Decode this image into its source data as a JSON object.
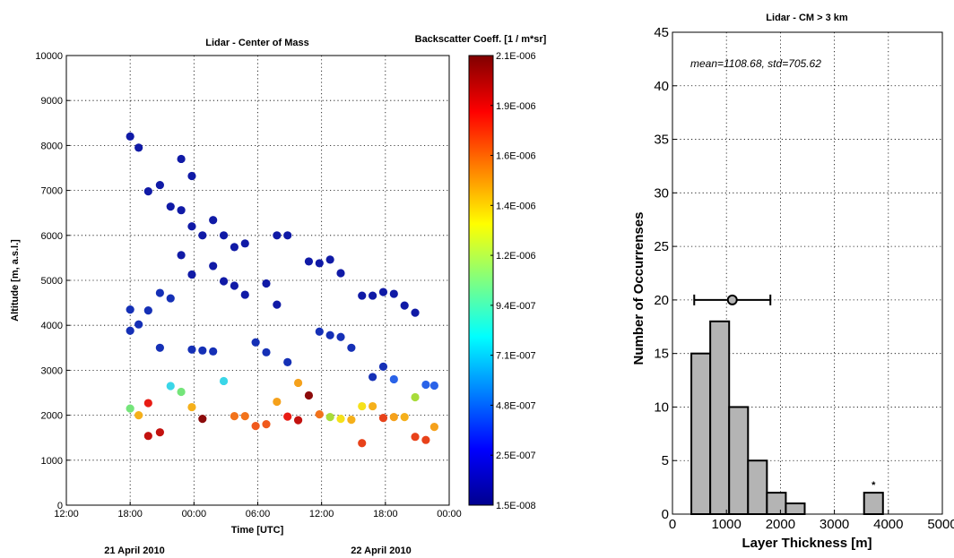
{
  "chart_data": [
    {
      "type": "scatter",
      "title": "Lidar - Center of Mass",
      "xlabel": "Time [UTC]",
      "ylabel": "Altitude [m, a.s.l.]",
      "x_unit": "hours since 21 April 2010 12:00 UTC",
      "x_tick_labels": [
        "12:00",
        "18:00",
        "00:00",
        "06:00",
        "12:00",
        "18:00",
        "00:00"
      ],
      "x_tick_values": [
        0,
        6,
        12,
        18,
        24,
        30,
        36
      ],
      "y_tick_labels": [
        "0",
        "1000",
        "2000",
        "3000",
        "4000",
        "5000",
        "6000",
        "7000",
        "8000",
        "9000",
        "10000"
      ],
      "xlim": [
        0,
        36
      ],
      "ylim": [
        0,
        10000
      ],
      "grid": true,
      "date_labels": [
        "21 April 2010",
        "22 April 2010"
      ],
      "colorbar": {
        "title": "Backscatter Coeff. [1 / m*sr]",
        "tick_labels": [
          "2.1E-006",
          "1.9E-006",
          "1.6E-006",
          "1.4E-006",
          "1.2E-006",
          "9.4E-007",
          "7.1E-007",
          "4.8E-007",
          "2.5E-007",
          "1.5E-008"
        ],
        "colors": [
          "#00008f",
          "#0000ff",
          "#0080ff",
          "#00ffff",
          "#80ff80",
          "#ffff00",
          "#ff8000",
          "#ff0000",
          "#800000"
        ]
      },
      "points": [
        {
          "x": 6.0,
          "y": 8200,
          "c": "#101aa6"
        },
        {
          "x": 6.8,
          "y": 7950,
          "c": "#101aa6"
        },
        {
          "x": 6.0,
          "y": 4350,
          "c": "#1530b6"
        },
        {
          "x": 6.0,
          "y": 3880,
          "c": "#1530b6"
        },
        {
          "x": 6.0,
          "y": 2150,
          "c": "#74e57a"
        },
        {
          "x": 6.8,
          "y": 4020,
          "c": "#1530b6"
        },
        {
          "x": 6.8,
          "y": 2000,
          "c": "#f5b01b"
        },
        {
          "x": 7.7,
          "y": 6980,
          "c": "#101aa6"
        },
        {
          "x": 7.7,
          "y": 4330,
          "c": "#1530b6"
        },
        {
          "x": 7.7,
          "y": 2270,
          "c": "#e81c14"
        },
        {
          "x": 7.7,
          "y": 1540,
          "c": "#c3120f"
        },
        {
          "x": 8.8,
          "y": 7120,
          "c": "#101aa6"
        },
        {
          "x": 8.8,
          "y": 4720,
          "c": "#1530b6"
        },
        {
          "x": 8.8,
          "y": 3500,
          "c": "#1530b6"
        },
        {
          "x": 8.8,
          "y": 1620,
          "c": "#c3120f"
        },
        {
          "x": 9.8,
          "y": 6640,
          "c": "#101aa6"
        },
        {
          "x": 9.8,
          "y": 4600,
          "c": "#1530b6"
        },
        {
          "x": 9.8,
          "y": 2650,
          "c": "#3ad6e8"
        },
        {
          "x": 10.8,
          "y": 7700,
          "c": "#101aa6"
        },
        {
          "x": 10.8,
          "y": 6560,
          "c": "#101aa6"
        },
        {
          "x": 10.8,
          "y": 5560,
          "c": "#101aa6"
        },
        {
          "x": 10.8,
          "y": 2520,
          "c": "#74e57a"
        },
        {
          "x": 11.8,
          "y": 7320,
          "c": "#101aa6"
        },
        {
          "x": 11.8,
          "y": 6200,
          "c": "#101aa6"
        },
        {
          "x": 11.8,
          "y": 5130,
          "c": "#101aa6"
        },
        {
          "x": 11.8,
          "y": 3460,
          "c": "#1530b6"
        },
        {
          "x": 11.8,
          "y": 2180,
          "c": "#f5b01b"
        },
        {
          "x": 12.8,
          "y": 6000,
          "c": "#101aa6"
        },
        {
          "x": 12.8,
          "y": 3440,
          "c": "#1530b6"
        },
        {
          "x": 12.8,
          "y": 1920,
          "c": "#8c0b0b"
        },
        {
          "x": 13.8,
          "y": 6340,
          "c": "#101aa6"
        },
        {
          "x": 13.8,
          "y": 5320,
          "c": "#101aa6"
        },
        {
          "x": 13.8,
          "y": 3420,
          "c": "#1530b6"
        },
        {
          "x": 14.8,
          "y": 6000,
          "c": "#101aa6"
        },
        {
          "x": 14.8,
          "y": 4980,
          "c": "#101aa6"
        },
        {
          "x": 14.8,
          "y": 2760,
          "c": "#3ad6e8"
        },
        {
          "x": 15.8,
          "y": 5740,
          "c": "#101aa6"
        },
        {
          "x": 15.8,
          "y": 4880,
          "c": "#101aa6"
        },
        {
          "x": 15.8,
          "y": 1980,
          "c": "#f2731b"
        },
        {
          "x": 16.8,
          "y": 5820,
          "c": "#101aa6"
        },
        {
          "x": 16.8,
          "y": 4680,
          "c": "#101aa6"
        },
        {
          "x": 16.8,
          "y": 1980,
          "c": "#f2731b"
        },
        {
          "x": 17.8,
          "y": 3620,
          "c": "#1530b6"
        },
        {
          "x": 17.8,
          "y": 1760,
          "c": "#f05a1d"
        },
        {
          "x": 18.8,
          "y": 4930,
          "c": "#101aa6"
        },
        {
          "x": 18.8,
          "y": 3400,
          "c": "#1530b6"
        },
        {
          "x": 18.8,
          "y": 1800,
          "c": "#f05a1d"
        },
        {
          "x": 19.8,
          "y": 6000,
          "c": "#101aa6"
        },
        {
          "x": 19.8,
          "y": 4460,
          "c": "#101aa6"
        },
        {
          "x": 19.8,
          "y": 2300,
          "c": "#f5a11b"
        },
        {
          "x": 20.8,
          "y": 6000,
          "c": "#101aa6"
        },
        {
          "x": 20.8,
          "y": 3180,
          "c": "#1530b6"
        },
        {
          "x": 20.8,
          "y": 1970,
          "c": "#e81c14"
        },
        {
          "x": 21.8,
          "y": 2720,
          "c": "#f5a11b"
        },
        {
          "x": 21.8,
          "y": 1890,
          "c": "#c3120f"
        },
        {
          "x": 22.8,
          "y": 5420,
          "c": "#101aa6"
        },
        {
          "x": 22.8,
          "y": 2440,
          "c": "#8c0b0b"
        },
        {
          "x": 23.8,
          "y": 5380,
          "c": "#101aa6"
        },
        {
          "x": 23.8,
          "y": 3860,
          "c": "#1530b6"
        },
        {
          "x": 23.8,
          "y": 2020,
          "c": "#f2731b"
        },
        {
          "x": 24.8,
          "y": 5460,
          "c": "#101aa6"
        },
        {
          "x": 24.8,
          "y": 3780,
          "c": "#1530b6"
        },
        {
          "x": 24.8,
          "y": 1960,
          "c": "#a8dc3a"
        },
        {
          "x": 25.8,
          "y": 5160,
          "c": "#101aa6"
        },
        {
          "x": 25.8,
          "y": 3740,
          "c": "#1530b6"
        },
        {
          "x": 25.8,
          "y": 1920,
          "c": "#f5e11b"
        },
        {
          "x": 26.8,
          "y": 3500,
          "c": "#1530b6"
        },
        {
          "x": 26.8,
          "y": 1900,
          "c": "#f5b01b"
        },
        {
          "x": 27.8,
          "y": 4660,
          "c": "#101aa6"
        },
        {
          "x": 27.8,
          "y": 2200,
          "c": "#f5e11b"
        },
        {
          "x": 27.8,
          "y": 1380,
          "c": "#e8421a"
        },
        {
          "x": 28.8,
          "y": 4660,
          "c": "#101aa6"
        },
        {
          "x": 28.8,
          "y": 2850,
          "c": "#1530b6"
        },
        {
          "x": 28.8,
          "y": 2200,
          "c": "#f5b01b"
        },
        {
          "x": 29.8,
          "y": 4740,
          "c": "#101aa6"
        },
        {
          "x": 29.8,
          "y": 3080,
          "c": "#1530b6"
        },
        {
          "x": 29.8,
          "y": 1940,
          "c": "#e8421a"
        },
        {
          "x": 30.8,
          "y": 4700,
          "c": "#101aa6"
        },
        {
          "x": 30.8,
          "y": 2800,
          "c": "#2a63e8"
        },
        {
          "x": 30.8,
          "y": 1960,
          "c": "#f5a11b"
        },
        {
          "x": 31.8,
          "y": 4440,
          "c": "#101aa6"
        },
        {
          "x": 31.8,
          "y": 1960,
          "c": "#f5b01b"
        },
        {
          "x": 32.8,
          "y": 4280,
          "c": "#101aa6"
        },
        {
          "x": 32.8,
          "y": 2400,
          "c": "#a8dc3a"
        },
        {
          "x": 32.8,
          "y": 1520,
          "c": "#e8421a"
        },
        {
          "x": 33.8,
          "y": 2680,
          "c": "#2a63e8"
        },
        {
          "x": 33.8,
          "y": 1450,
          "c": "#e8421a"
        },
        {
          "x": 34.6,
          "y": 2660,
          "c": "#2a63e8"
        },
        {
          "x": 34.6,
          "y": 1740,
          "c": "#f5a11b"
        }
      ]
    },
    {
      "type": "bar",
      "title": "Lidar - CM > 3 km",
      "xlabel": "Layer Thickness [m]",
      "ylabel": "Number of Occurrenses",
      "annotation": "mean=1108.68, std=705.62",
      "mean": 1108.68,
      "std": 705.62,
      "marker_text": "*",
      "xlim": [
        0,
        5000
      ],
      "ylim": [
        0,
        45
      ],
      "x_tick_labels": [
        "0",
        "1000",
        "2000",
        "3000",
        "4000",
        "5000"
      ],
      "y_tick_labels": [
        "0",
        "5",
        "10",
        "15",
        "20",
        "25",
        "30",
        "35",
        "40",
        "45"
      ],
      "grid": true,
      "bar_color": "#b4b4b4",
      "bin_width": 350,
      "bins": [
        {
          "x": 525,
          "value": 15
        },
        {
          "x": 875,
          "value": 18
        },
        {
          "x": 1225,
          "value": 10
        },
        {
          "x": 1575,
          "value": 5
        },
        {
          "x": 1925,
          "value": 2
        },
        {
          "x": 2275,
          "value": 1
        },
        {
          "x": 3725,
          "value": 2
        }
      ]
    }
  ]
}
